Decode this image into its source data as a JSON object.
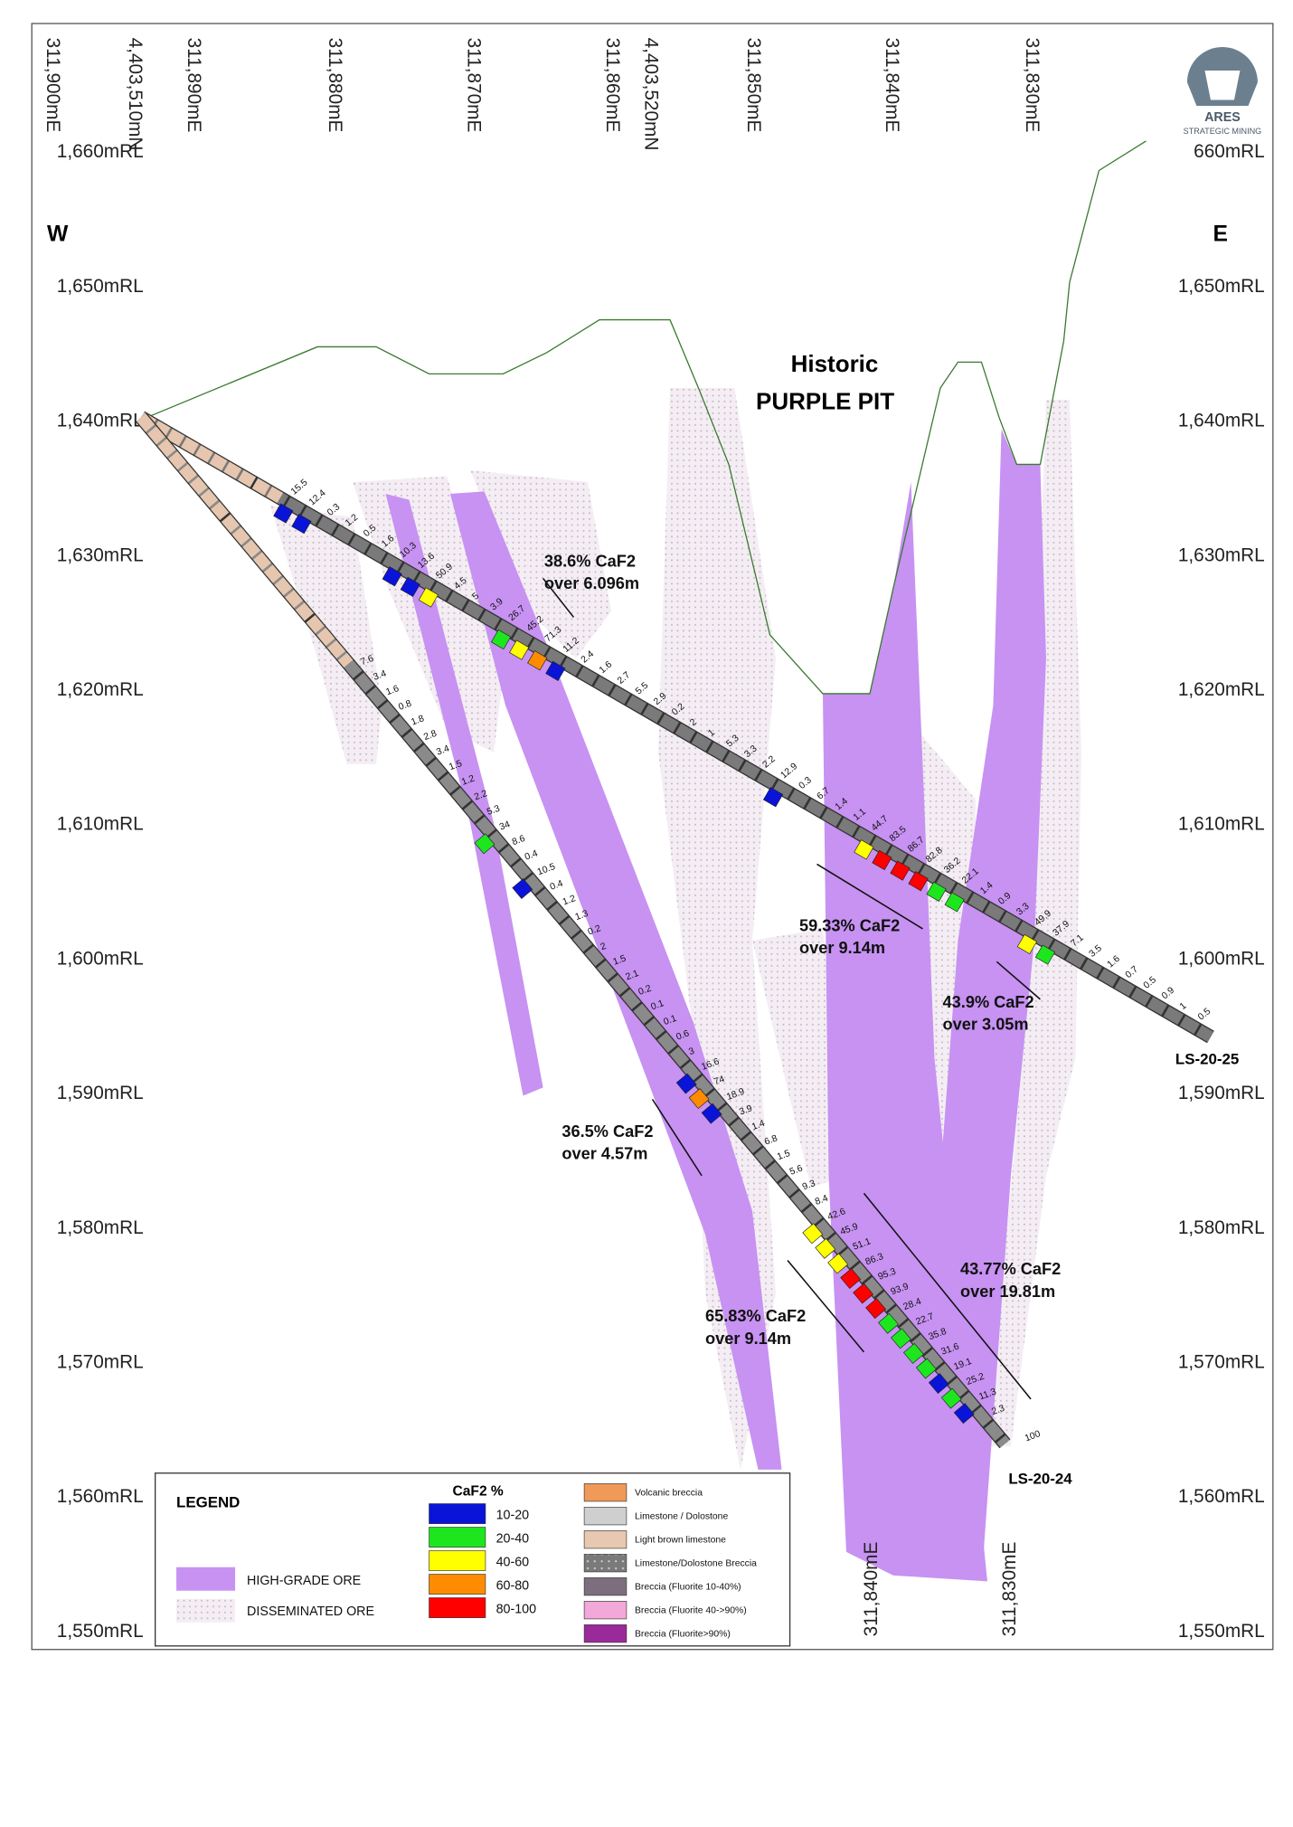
{
  "logo": {
    "name": "ARES",
    "subtitle": "STRATEGIC MINING"
  },
  "directions": {
    "west": "W",
    "east": "E"
  },
  "top_labels": [
    "311,900mE",
    "4,403,510mN",
    "311,890mE",
    "311,880mE",
    "311,870mE",
    "311,860mE",
    "4,403,520mN",
    "311,850mE",
    "311,840mE",
    "311,830mE"
  ],
  "bottom_labels": [
    "311,840mE",
    "311,830mE"
  ],
  "left_elevations": [
    "1,660mRL",
    "1,650mRL",
    "1,640mRL",
    "1,630mRL",
    "1,620mRL",
    "1,610mRL",
    "1,600mRL",
    "1,590mRL",
    "1,580mRL",
    "1,570mRL",
    "1,560mRL",
    "1,550mRL"
  ],
  "right_elevations": [
    "660mRL",
    "1,650mRL",
    "1,640mRL",
    "1,630mRL",
    "1,620mRL",
    "1,610mRL",
    "1,600mRL",
    "1,590mRL",
    "1,580mRL",
    "1,570mRL",
    "1,560mRL",
    "1,550mRL"
  ],
  "pit_label": [
    "Historic",
    "PURPLE PIT"
  ],
  "intercepts": [
    {
      "grade": "38.6% CaF2",
      "length": "over 6.096m"
    },
    {
      "grade": "59.33% CaF2",
      "length": "over 9.14m"
    },
    {
      "grade": "43.9% CaF2",
      "length": "over 3.05m"
    },
    {
      "grade": "36.5% CaF2",
      "length": "over 4.57m"
    },
    {
      "grade": "43.77% CaF2",
      "length": "over 19.81m"
    },
    {
      "grade": "65.83% CaF2",
      "length": "over 9.14m"
    }
  ],
  "holes": [
    {
      "name": "LS-20-25",
      "assays": [
        15.5,
        12.4,
        0.3,
        1.2,
        0.5,
        1.6,
        10.3,
        13.6,
        50.9,
        4.5,
        5,
        3.9,
        26.7,
        45.2,
        71.3,
        11.2,
        2.4,
        1.6,
        2.7,
        5.5,
        2.9,
        0.2,
        2,
        1,
        5.3,
        3.3,
        2.2,
        12.9,
        0.3,
        6.7,
        1.4,
        1.1,
        44.7,
        83.5,
        86.7,
        82.8,
        36.2,
        22.1,
        1.4,
        0.9,
        3.3,
        49.9,
        37.9,
        7.1,
        3.5,
        1.6,
        0.7,
        0.5,
        0.9,
        1,
        0.5
      ]
    },
    {
      "name": "LS-20-24",
      "assays": [
        7.6,
        3.4,
        1.6,
        0.8,
        1.8,
        2.8,
        3.4,
        1.5,
        1.2,
        2.2,
        5.3,
        34,
        8.6,
        0.4,
        10.5,
        0.4,
        1.2,
        1.3,
        0.2,
        2,
        1.5,
        2.1,
        0.2,
        0.1,
        0.1,
        0.6,
        3,
        16.6,
        74,
        18.9,
        3.9,
        1.4,
        6.8,
        1.5,
        5.6,
        9.3,
        8.4,
        42.6,
        45.9,
        51.1,
        86.3,
        95.3,
        93.9,
        28.4,
        22.7,
        35.8,
        31.6,
        19.1,
        25.2,
        11.3,
        2.3
      ],
      "end_depth": 100
    }
  ],
  "legend": {
    "title": "LEGEND",
    "ore": [
      "HIGH-GRADE ORE",
      "DISSEMINATED ORE"
    ],
    "grade_title": "CaF2 %",
    "grades": [
      {
        "label": "10-20",
        "color": "#0a14d8"
      },
      {
        "label": "20-40",
        "color": "#1ee61e"
      },
      {
        "label": "40-60",
        "color": "#ffff00"
      },
      {
        "label": "60-80",
        "color": "#ff8c00"
      },
      {
        "label": "80-100",
        "color": "#ff0000"
      }
    ],
    "lithology": [
      "Volcanic breccia",
      "Limestone / Dolostone",
      "Light brown limestone",
      "Limestone/Dolostone Breccia",
      "Breccia (Fluorite 10-40%)",
      "Breccia (Fluorite 40->90%)",
      "Breccia (Fluorite>90%)"
    ]
  }
}
